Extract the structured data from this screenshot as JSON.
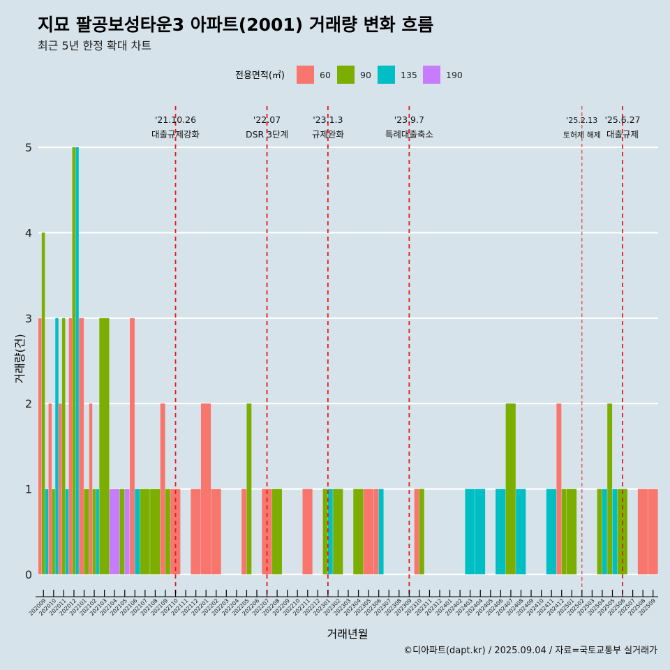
{
  "title": "지묘 팔공보성타운3 아파트(2001) 거래량 변화 흐름",
  "subtitle": "최근 5년 한정 확대 차트",
  "caption": "©디아파트(dapt.kr) / 2025.09.04 / 자료=국토교통부 실거래가",
  "colors": {
    "background": "#d6e3ea",
    "grid": "#ffffff",
    "event_line": "#e41a1c"
  },
  "chart_data": {
    "type": "bar",
    "xlabel": "거래년월",
    "ylabel": "거래량(건)",
    "ylim": [
      0,
      5
    ],
    "yticks": [
      0,
      1,
      2,
      3,
      4,
      5
    ],
    "grid": true,
    "legend": {
      "title": "전용면적(㎡)",
      "position": "top"
    },
    "categories": [
      "202009",
      "202010",
      "202011",
      "202012",
      "202101",
      "202102",
      "202103",
      "202104",
      "202105",
      "202106",
      "202107",
      "202108",
      "202109",
      "202110",
      "202111",
      "202112",
      "202201",
      "202202",
      "202203",
      "202204",
      "202205",
      "202206",
      "202207",
      "202208",
      "202209",
      "202210",
      "202211",
      "202212",
      "202301",
      "202302",
      "202303",
      "202304",
      "202305",
      "202306",
      "202307",
      "202308",
      "202309",
      "202310",
      "202311",
      "202312",
      "202401",
      "202402",
      "202403",
      "202404",
      "202405",
      "202406",
      "202407",
      "202408",
      "202409",
      "202410",
      "202411",
      "202412",
      "202501",
      "202502",
      "202503",
      "202504",
      "202505",
      "202506",
      "202507",
      "202508",
      "202509"
    ],
    "series": [
      {
        "name": "60",
        "color": "#f8766d",
        "values": [
          3,
          2,
          2,
          3,
          3,
          2,
          0,
          0,
          0,
          3,
          0,
          0,
          2,
          1,
          0,
          1,
          2,
          1,
          0,
          0,
          1,
          0,
          1,
          0,
          0,
          0,
          1,
          0,
          0,
          0,
          0,
          0,
          1,
          1,
          0,
          0,
          0,
          1,
          0,
          0,
          0,
          0,
          0,
          0,
          0,
          0,
          0,
          0,
          0,
          0,
          0,
          2,
          0,
          0,
          0,
          0,
          0,
          0,
          0,
          1,
          1
        ]
      },
      {
        "name": "90",
        "color": "#7cae00",
        "values": [
          4,
          1,
          3,
          5,
          1,
          1,
          3,
          0,
          1,
          0,
          1,
          1,
          1,
          0,
          0,
          0,
          0,
          0,
          0,
          0,
          2,
          0,
          0,
          1,
          0,
          0,
          0,
          0,
          1,
          1,
          0,
          1,
          0,
          0,
          0,
          0,
          0,
          1,
          0,
          0,
          0,
          0,
          0,
          0,
          0,
          0,
          2,
          0,
          0,
          0,
          0,
          1,
          1,
          0,
          0,
          1,
          2,
          1,
          0,
          0,
          0
        ]
      },
      {
        "name": "135",
        "color": "#00bfc4",
        "values": [
          1,
          3,
          1,
          5,
          0,
          1,
          0,
          0,
          0,
          1,
          0,
          0,
          0,
          0,
          0,
          0,
          0,
          0,
          0,
          0,
          0,
          0,
          0,
          0,
          0,
          0,
          0,
          0,
          1,
          0,
          0,
          0,
          0,
          1,
          0,
          0,
          0,
          0,
          0,
          0,
          0,
          0,
          1,
          1,
          0,
          1,
          0,
          1,
          0,
          0,
          1,
          0,
          0,
          0,
          0,
          1,
          1,
          0,
          0,
          0,
          0
        ]
      },
      {
        "name": "190",
        "color": "#c77cff",
        "values": [
          0,
          0,
          0,
          0,
          0,
          0,
          0,
          1,
          1,
          0,
          0,
          0,
          0,
          0,
          0,
          0,
          0,
          0,
          0,
          0,
          0,
          0,
          0,
          0,
          0,
          0,
          0,
          0,
          0,
          0,
          0,
          0,
          0,
          0,
          0,
          0,
          0,
          0,
          0,
          0,
          0,
          0,
          0,
          0,
          0,
          0,
          0,
          0,
          0,
          0,
          0,
          0,
          0,
          0,
          0,
          0,
          0,
          0,
          0,
          0,
          0
        ]
      }
    ],
    "events": [
      {
        "x": "202110",
        "date": "'21.10.26",
        "label": "대출규제강화",
        "style": "dashed"
      },
      {
        "x": "202207",
        "date": "'22.07",
        "label": "DSR 3단계",
        "style": "dashed"
      },
      {
        "x": "202301",
        "date": "'23.1.3",
        "label": "규제완화",
        "style": "dashed"
      },
      {
        "x": "202309",
        "date": "'23.9.7",
        "label": "특례대출축소",
        "style": "dashed"
      },
      {
        "x": "202502",
        "date": "'25.2.13",
        "label": "토허제 해제",
        "style": "thin-dashed"
      },
      {
        "x": "202506",
        "date": "'25.6.27",
        "label": "대출규제",
        "style": "dashed"
      }
    ]
  }
}
